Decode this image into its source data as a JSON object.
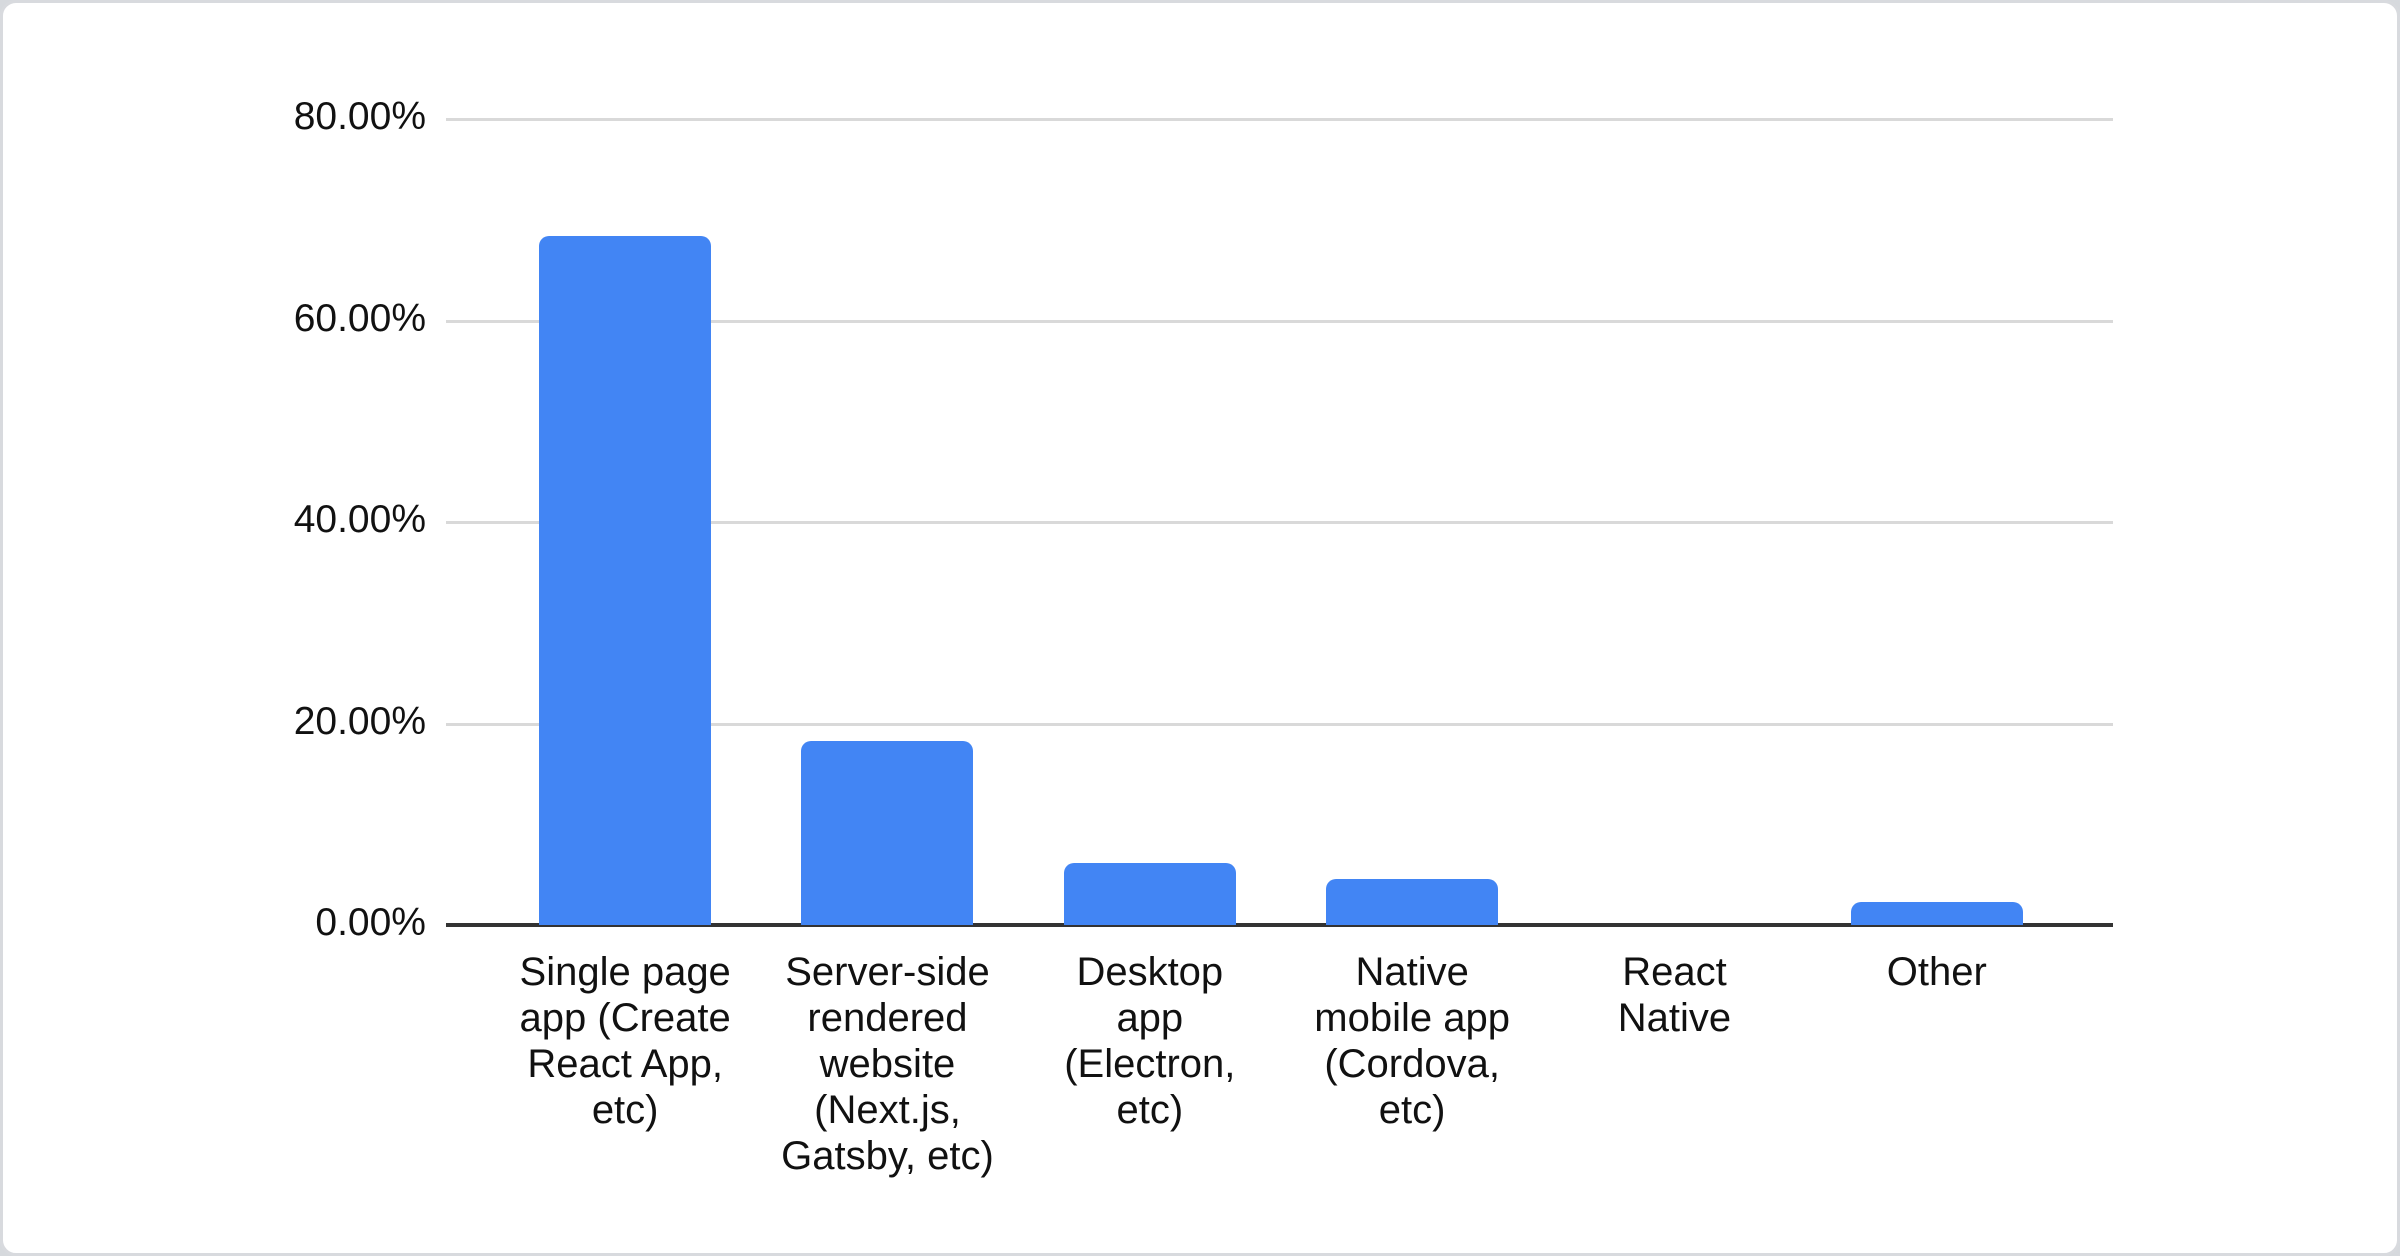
{
  "chart_data": {
    "type": "bar",
    "title": "",
    "xlabel": "",
    "ylabel": "",
    "categories": [
      "Single page app (Create React App, etc)",
      "Server-side rendered website (Next.js, Gatsby, etc)",
      "Desktop app (Electron, etc)",
      "Native mobile app (Cordova, etc)",
      "React Native",
      "Other"
    ],
    "categories_wrapped": [
      [
        "Single page",
        "app (Create",
        "React App,",
        "etc)"
      ],
      [
        "Server-side",
        "rendered",
        "website",
        "(Next.js,",
        "Gatsby, etc)"
      ],
      [
        "Desktop",
        "app",
        "(Electron,",
        "etc)"
      ],
      [
        "Native",
        "mobile app",
        "(Cordova,",
        "etc)"
      ],
      [
        "React",
        "Native"
      ],
      [
        "Other"
      ]
    ],
    "values": [
      68.4,
      18.3,
      6.2,
      4.6,
      0,
      2.3
    ],
    "unit": "%",
    "y_ticks": [
      {
        "label": "0.00%",
        "value": 0
      },
      {
        "label": "20.00%",
        "value": 20
      },
      {
        "label": "40.00%",
        "value": 40
      },
      {
        "label": "60.00%",
        "value": 60
      },
      {
        "label": "80.00%",
        "value": 80
      }
    ],
    "ylim": [
      0,
      80
    ],
    "grid": true,
    "legend": "none",
    "colors": {
      "bar": "#4285f4",
      "gridline": "#d9d9d9",
      "axis_line": "#333333",
      "text": "#111111",
      "card_background": "#ffffff",
      "card_border": "#d8dade",
      "page_background": "#d6d9dd"
    }
  }
}
